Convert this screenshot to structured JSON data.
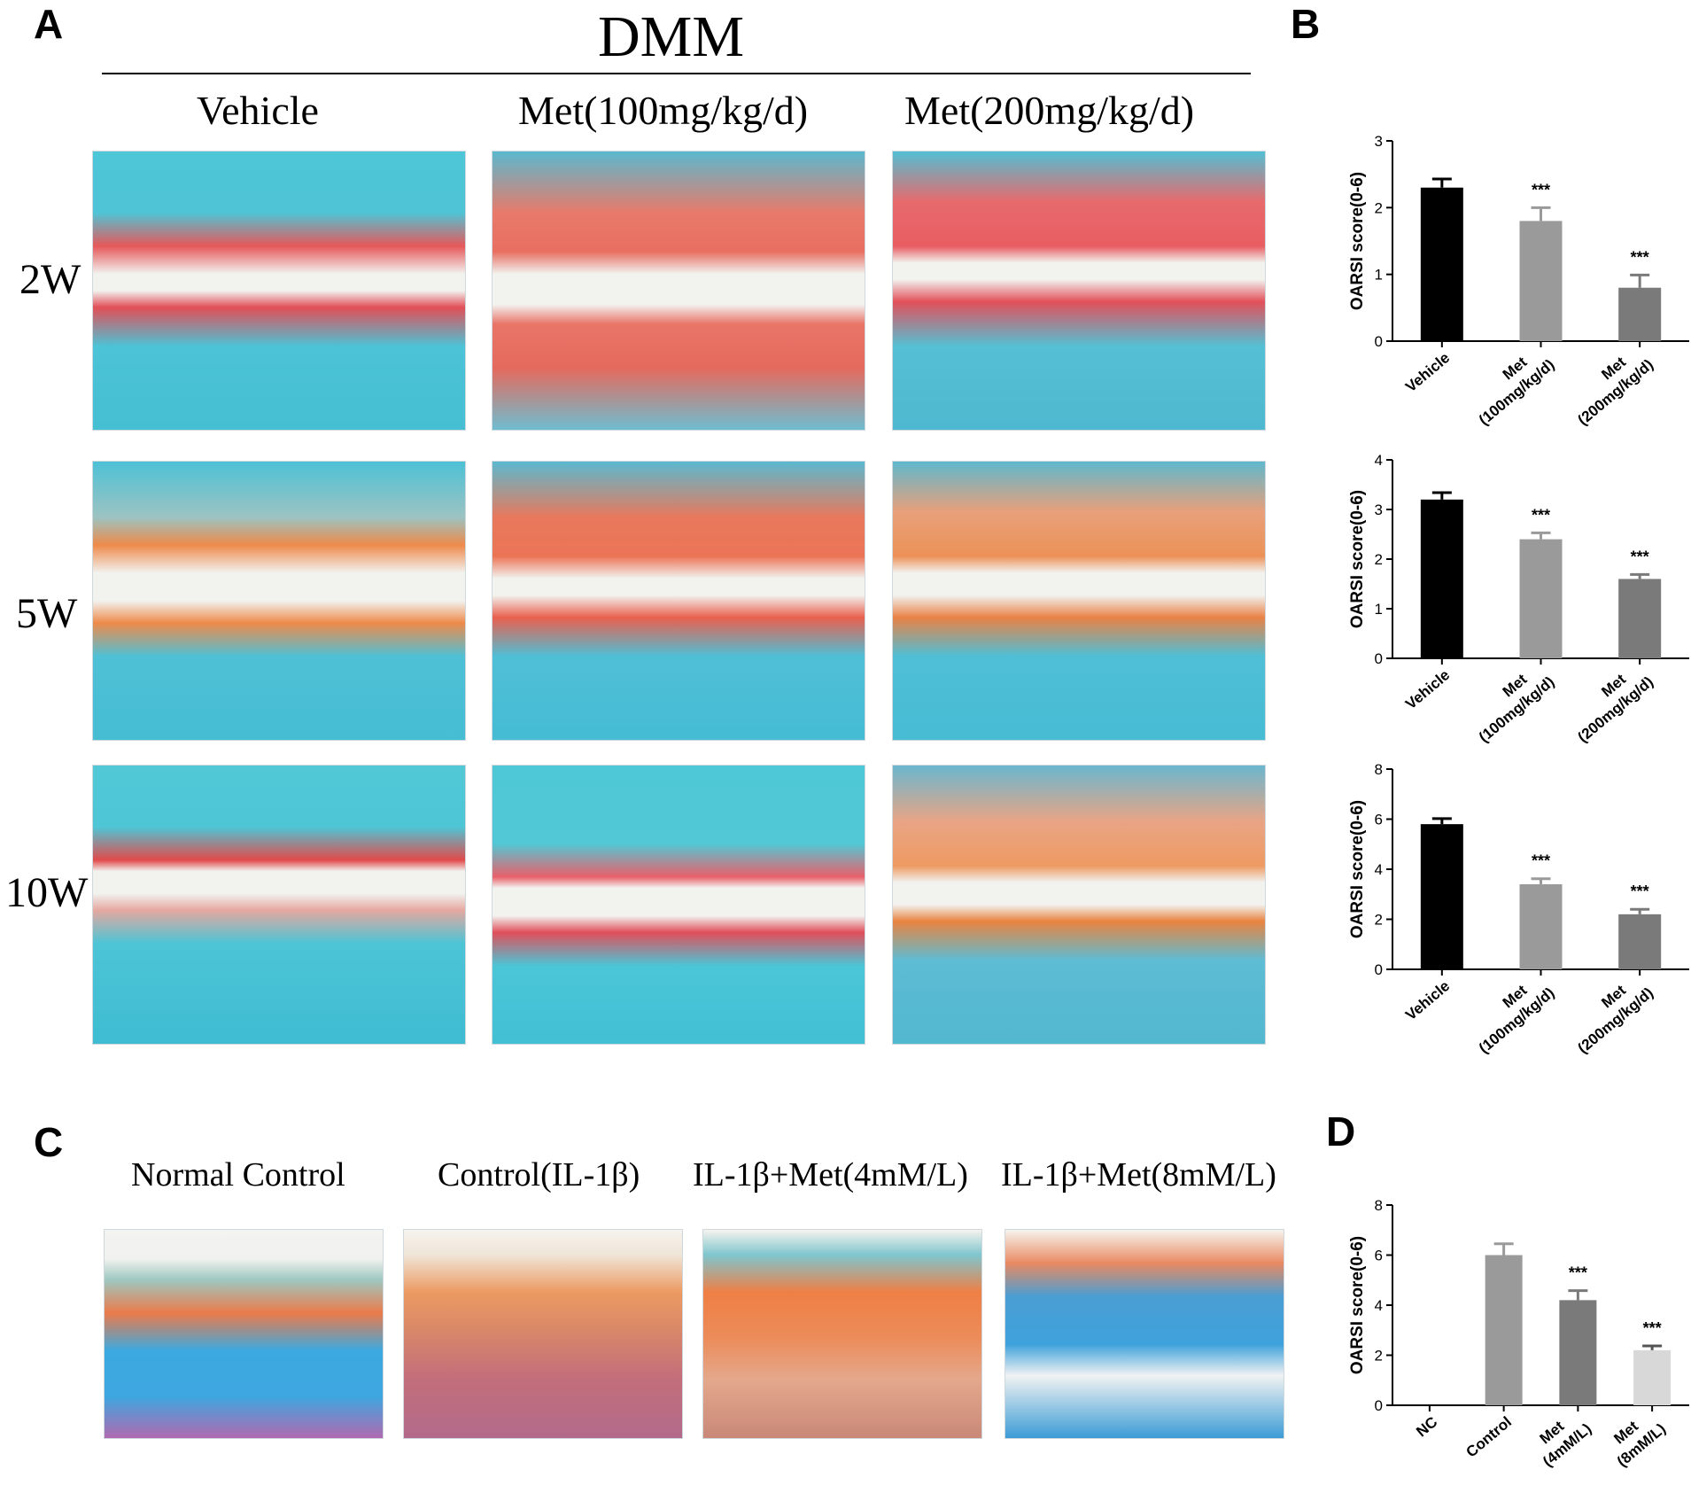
{
  "panels": {
    "a": "A",
    "b": "B",
    "c": "C",
    "d": "D"
  },
  "dmm_title": "DMM",
  "groups_a": [
    "Vehicle",
    "Met(100mg/kg/d)",
    "Met(200mg/kg/d)"
  ],
  "rows_a": [
    "2W",
    "5W",
    "10W"
  ],
  "groups_c": [
    "Normal Control",
    "Control(IL-1β)",
    "IL-1β+Met(4mM/L)",
    "IL-1β+Met(8mM/L)"
  ],
  "colors": {
    "stain_blue": "#4cc3d6",
    "stain_red": "#e2504f",
    "stain_orange": "#ee8a4a",
    "bar_black": "#000000",
    "bar_gray": "#9a9a9a",
    "bar_dark_gray": "#7a7a7a",
    "bar_light_gray": "#d8d8d8"
  },
  "chart_data": [
    {
      "type": "bar",
      "panel": "B (2W)",
      "categories": [
        [
          "Vehicle"
        ],
        [
          "Met",
          "(100mg/kg/d)"
        ],
        [
          "Met",
          "(200mg/kg/d)"
        ]
      ],
      "values": [
        2.3,
        1.8,
        0.8
      ],
      "errors": [
        0.13,
        0.2,
        0.19
      ],
      "significance": [
        "",
        "***",
        "***"
      ],
      "bar_colors": [
        "#000000",
        "#9a9a9a",
        "#7a7a7a"
      ],
      "ylabel": "OARSI score(0-6)",
      "ylim": [
        0,
        3
      ],
      "yticks": [
        0,
        1,
        2,
        3
      ]
    },
    {
      "type": "bar",
      "panel": "B (5W)",
      "categories": [
        [
          "Vehicle"
        ],
        [
          "Met",
          "(100mg/kg/d)"
        ],
        [
          "Met",
          "(200mg/kg/d)"
        ]
      ],
      "values": [
        3.2,
        2.4,
        1.6
      ],
      "errors": [
        0.14,
        0.13,
        0.09
      ],
      "significance": [
        "",
        "***",
        "***"
      ],
      "bar_colors": [
        "#000000",
        "#9a9a9a",
        "#7a7a7a"
      ],
      "ylabel": "OARSI score(0-6)",
      "ylim": [
        0,
        4
      ],
      "yticks": [
        0,
        1,
        2,
        3,
        4
      ]
    },
    {
      "type": "bar",
      "panel": "B (10W)",
      "categories": [
        [
          "Vehicle"
        ],
        [
          "Met",
          "(100mg/kg/d)"
        ],
        [
          "Met",
          "(200mg/kg/d)"
        ]
      ],
      "values": [
        5.8,
        3.4,
        2.2
      ],
      "errors": [
        0.22,
        0.22,
        0.2
      ],
      "significance": [
        "",
        "***",
        "***"
      ],
      "bar_colors": [
        "#000000",
        "#9a9a9a",
        "#7a7a7a"
      ],
      "ylabel": "OARSI score(0-6)",
      "ylim": [
        0,
        8
      ],
      "yticks": [
        0,
        2,
        4,
        6,
        8
      ]
    },
    {
      "type": "bar",
      "panel": "D",
      "categories": [
        [
          "NC"
        ],
        [
          "Control"
        ],
        [
          "Met",
          "(4mM/L)"
        ],
        [
          "Met",
          "(8mM/L)"
        ]
      ],
      "values": [
        0,
        6.0,
        4.2,
        2.2
      ],
      "errors": [
        0,
        0.45,
        0.38,
        0.17
      ],
      "significance": [
        "",
        "",
        "***",
        "***"
      ],
      "bar_colors": [
        "#000000",
        "#9a9a9a",
        "#7a7a7a",
        "#d8d8d8"
      ],
      "ylabel": "OARSI score(0-6)",
      "ylim": [
        0,
        8
      ],
      "yticks": [
        0,
        2,
        4,
        6,
        8
      ]
    }
  ]
}
